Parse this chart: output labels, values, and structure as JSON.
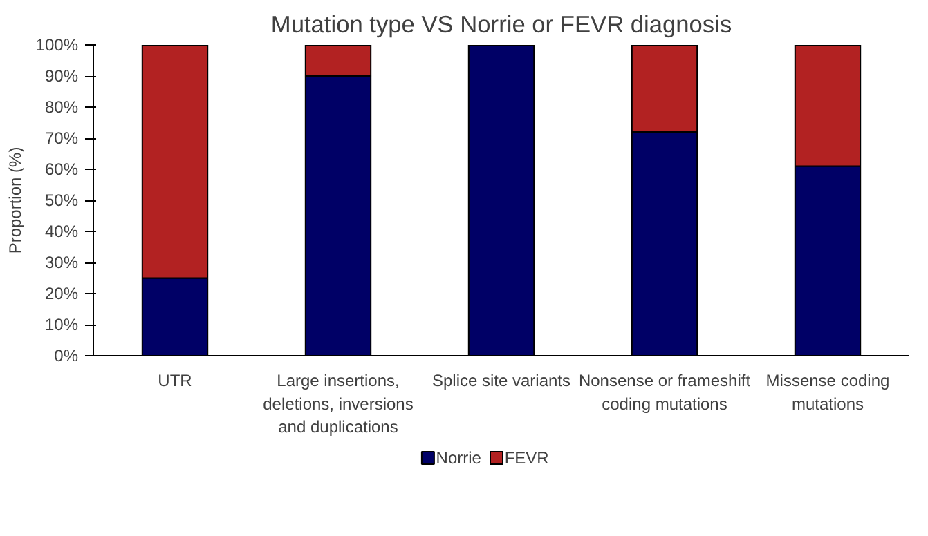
{
  "chart_data": {
    "type": "bar",
    "stacked": true,
    "title": "Mutation type VS Norrie or FEVR diagnosis",
    "ylabel": "Proportion (%)",
    "categories": [
      "UTR",
      "Large insertions, deletions, inversions and duplications",
      "Splice site variants",
      "Nonsense or frameshift coding mutations",
      "Missense coding mutations"
    ],
    "series": [
      {
        "name": "Norrie",
        "color": "#000066",
        "values": [
          25,
          90,
          100,
          72,
          61
        ]
      },
      {
        "name": "FEVR",
        "color": "#b22222",
        "values": [
          75,
          10,
          0,
          28,
          39
        ]
      }
    ],
    "ylim": [
      0,
      100
    ],
    "yticks": [
      {
        "value": 0,
        "label": "0%"
      },
      {
        "value": 10,
        "label": "10%"
      },
      {
        "value": 20,
        "label": "20%"
      },
      {
        "value": 30,
        "label": "30%"
      },
      {
        "value": 40,
        "label": "40%"
      },
      {
        "value": 50,
        "label": "50%"
      },
      {
        "value": 60,
        "label": "60%"
      },
      {
        "value": 70,
        "label": "70%"
      },
      {
        "value": 80,
        "label": "80%"
      },
      {
        "value": 90,
        "label": "90%"
      },
      {
        "value": 100,
        "label": "100%"
      }
    ],
    "grid": false,
    "legend": "bottom"
  }
}
